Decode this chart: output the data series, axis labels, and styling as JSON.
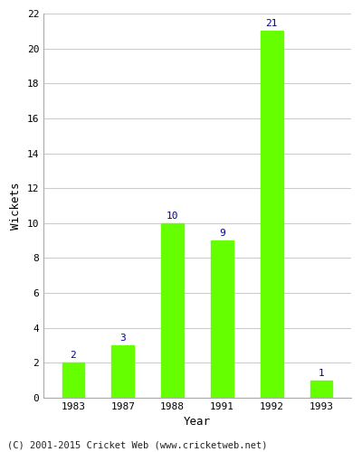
{
  "categories": [
    "1983",
    "1987",
    "1988",
    "1991",
    "1992",
    "1993"
  ],
  "values": [
    2,
    3,
    10,
    9,
    21,
    1
  ],
  "bar_color": "#66ff00",
  "bar_edge_color": "#66ff00",
  "ylabel": "Wickets",
  "xlabel": "Year",
  "ylim": [
    0,
    22
  ],
  "yticks": [
    0,
    2,
    4,
    6,
    8,
    10,
    12,
    14,
    16,
    18,
    20,
    22
  ],
  "label_color": "#000099",
  "label_fontsize": 8,
  "axis_label_fontsize": 9,
  "tick_fontsize": 8,
  "footer_text": "(C) 2001-2015 Cricket Web (www.cricketweb.net)",
  "footer_fontsize": 7.5,
  "background_color": "#ffffff",
  "plot_bg_color": "#ffffff",
  "grid_color": "#cccccc",
  "bar_width": 0.45
}
